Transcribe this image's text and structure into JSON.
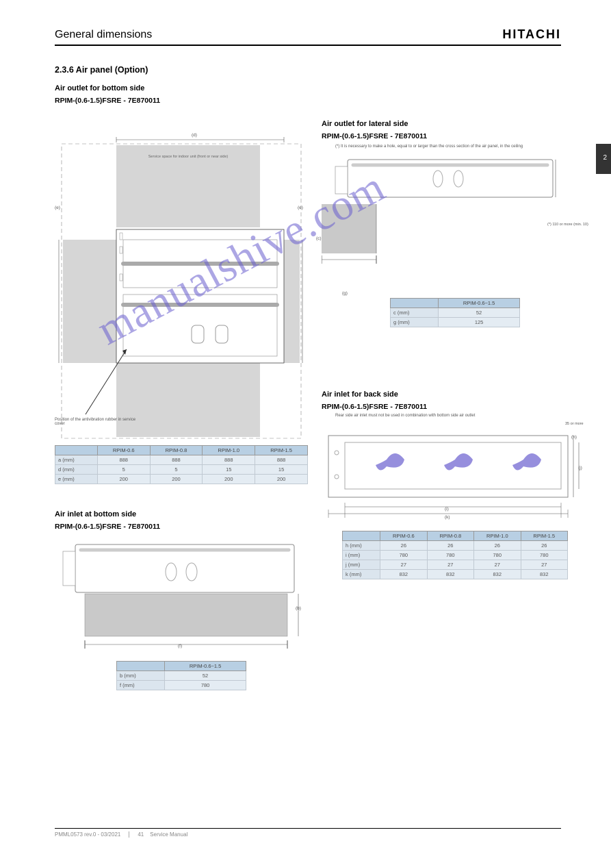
{
  "header": {
    "subtitle": "General dimensions",
    "logo": "HITACHI"
  },
  "chapter_tab": "2",
  "section": {
    "num_title": "2.3.6 Air panel (Option)",
    "sub1": "Air outlet for bottom side",
    "sub2": "Air outlet for lateral side",
    "sub3": "Air inlet for back side",
    "sub4": "Air inlet at bottom side",
    "models": "RPIM-(0.6-1.5)FSRE - 7E870011"
  },
  "diagram_a": {
    "callout": "Position of the antivibration rubber in service cover",
    "top_center_note": "Service space for indoor unit (front or near side)",
    "label_e1": "(e)",
    "label_e2": "(e)",
    "axis_d": "(d)",
    "tbl_headers": [
      "",
      "RPIM-0.6",
      "RPIM-0.8",
      "RPIM-1.0",
      "RPIM-1.5"
    ],
    "tbl_rows": [
      [
        "a (mm)",
        "888",
        "888",
        "888",
        "888"
      ],
      [
        "d (mm)",
        "5",
        "5",
        "15",
        "15"
      ],
      [
        "e (mm)",
        "200",
        "200",
        "200",
        "200"
      ]
    ]
  },
  "diagram_b": {
    "label_b": "(b)",
    "tbl_headers": [
      "",
      "RPIM-0.6~1.5"
    ],
    "tbl_rows": [
      [
        "b (mm)",
        "52"
      ],
      [
        "f (mm)",
        "780"
      ]
    ],
    "label_f": "(f)"
  },
  "diagram_c": {
    "note_top": "(*) It is necessary to make a hole, equal to or larger than the cross section of the air panel, in the ceiling",
    "label_c": "(c)",
    "label_g": "(g)",
    "right_note": "(*) 110 or more (min. 10)",
    "tbl_headers": [
      "",
      "RPIM-0.6~1.5"
    ],
    "tbl_rows": [
      [
        "c (mm)",
        "52"
      ],
      [
        "g (mm)",
        "125"
      ]
    ]
  },
  "diagram_d": {
    "note_top": "Rear side air inlet must not be used in combination with bottom side air outlet",
    "label_h": "(h)",
    "label_i": "(i)",
    "label_j": "(j)",
    "label_k": "(k)",
    "right_note": "35 or more",
    "tbl_headers": [
      "",
      "RPIM-0.6",
      "RPIM-0.8",
      "RPIM-1.0",
      "RPIM-1.5"
    ],
    "tbl_rows": [
      [
        "h (mm)",
        "26",
        "26",
        "26",
        "26"
      ],
      [
        "i (mm)",
        "780",
        "780",
        "780",
        "780"
      ],
      [
        "j (mm)",
        "27",
        "27",
        "27",
        "27"
      ],
      [
        "k (mm)",
        "832",
        "832",
        "832",
        "832"
      ]
    ]
  },
  "footer": {
    "ref": "PMML0573 rev.0 - 03/2021",
    "pageno": "41",
    "desc": "Service Manual"
  },
  "colors": {
    "th_bg": "#b8cfe3",
    "td_bg": "#e4ecf3",
    "gray": "#d6d6d6",
    "wm": "#6a5fcf"
  }
}
